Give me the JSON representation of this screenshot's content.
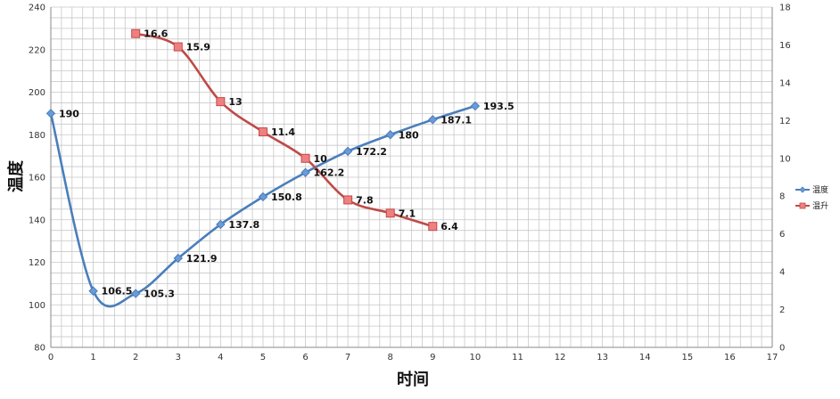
{
  "chart_data": {
    "type": "line",
    "xlabel": "时间",
    "ylabel": "温度",
    "xlim": [
      0,
      17
    ],
    "ylim": [
      80,
      240
    ],
    "y2lim": [
      0,
      18
    ],
    "x_ticks": [
      0,
      1,
      2,
      3,
      4,
      5,
      6,
      7,
      8,
      9,
      10,
      11,
      12,
      13,
      14,
      15,
      16,
      17
    ],
    "y_ticks": [
      80,
      100,
      120,
      140,
      160,
      180,
      200,
      220,
      240
    ],
    "y2_ticks": [
      0,
      2,
      4,
      6,
      8,
      10,
      12,
      14,
      16,
      18
    ],
    "grid": true,
    "legend_position": "right",
    "series": [
      {
        "name": "温度",
        "axis": "left",
        "color": "#4a7ebb",
        "marker": "diamond",
        "x": [
          0,
          1,
          2,
          3,
          4,
          5,
          6,
          7,
          8,
          9,
          10
        ],
        "values": [
          190,
          106.5,
          105.3,
          121.9,
          137.8,
          150.8,
          162.2,
          172.2,
          180,
          187.1,
          193.5
        ],
        "labels": [
          "190",
          "106.5",
          "105.3",
          "121.9",
          "137.8",
          "150.8",
          "162.2",
          "172.2",
          "180",
          "187.1",
          "193.5"
        ]
      },
      {
        "name": "温升",
        "axis": "right",
        "color": "#be4b48",
        "marker": "square",
        "x": [
          2,
          3,
          4,
          5,
          6,
          7,
          8,
          9
        ],
        "values": [
          16.6,
          15.9,
          13,
          11.4,
          10,
          7.8,
          7.1,
          6.4
        ],
        "labels": [
          "16.6",
          "15.9",
          "13",
          "11.4",
          "10",
          "7.8",
          "7.1",
          "6.4"
        ]
      }
    ]
  }
}
